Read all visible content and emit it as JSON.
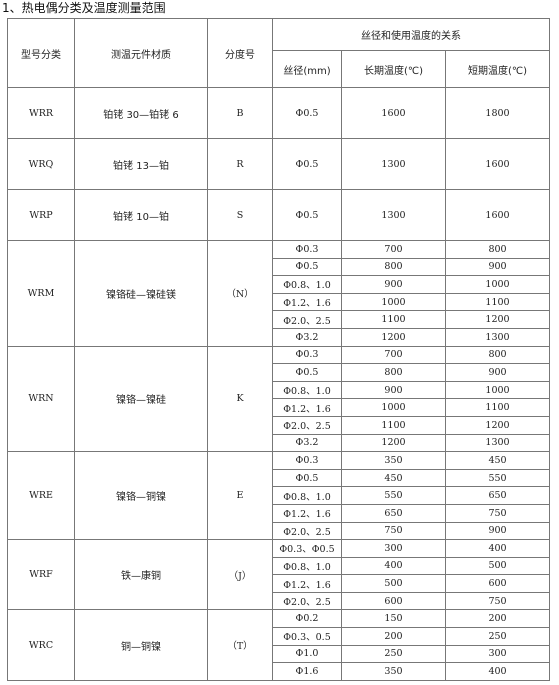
{
  "title": "1、热电偶分类及温度测量范围",
  "headers": {
    "model": "型号分类",
    "material": "测温元件材质",
    "grade": "分度号",
    "relation": "丝径和使用温度的关系",
    "diameter": "丝径(mm)",
    "long_term": "长期温度(℃)",
    "short_term": "短期温度(℃)"
  },
  "groups": [
    {
      "model": "WRR",
      "material": "铂铑 30—铂铑 6",
      "grade": "B",
      "rows": [
        [
          "Φ0.5",
          "1600",
          "1800"
        ]
      ]
    },
    {
      "model": "WRQ",
      "material": "铂铑 13—铂",
      "grade": "R",
      "rows": [
        [
          "Φ0.5",
          "1300",
          "1600"
        ]
      ]
    },
    {
      "model": "WRP",
      "material": "铂铑 10—铂",
      "grade": "S",
      "rows": [
        [
          "Φ0.5",
          "1300",
          "1600"
        ]
      ]
    },
    {
      "model": "WRM",
      "material": "镍铬硅—镍硅镁",
      "grade": "（N）",
      "rows": [
        [
          "Φ0.3",
          "700",
          "800"
        ],
        [
          "Φ0.5",
          "800",
          "900"
        ],
        [
          "Φ0.8、1.0",
          "900",
          "1000"
        ],
        [
          "Φ1.2、1.6",
          "1000",
          "1100"
        ],
        [
          "Φ2.0、2.5",
          "1100",
          "1200"
        ],
        [
          "Φ3.2",
          "1200",
          "1300"
        ]
      ]
    },
    {
      "model": "WRN",
      "material": "镍铬—镍硅",
      "grade": "K",
      "rows": [
        [
          "Φ0.3",
          "700",
          "800"
        ],
        [
          "Φ0.5",
          "800",
          "900"
        ],
        [
          "Φ0.8、1.0",
          "900",
          "1000"
        ],
        [
          "Φ1.2、1.6",
          "1000",
          "1100"
        ],
        [
          "Φ2.0、2.5",
          "1100",
          "1200"
        ],
        [
          "Φ3.2",
          "1200",
          "1300"
        ]
      ]
    },
    {
      "model": "WRE",
      "material": "镍铬—铜镍",
      "grade": "E",
      "rows": [
        [
          "Φ0.3",
          "350",
          "450"
        ],
        [
          "Φ0.5",
          "450",
          "550"
        ],
        [
          "Φ0.8、1.0",
          "550",
          "650"
        ],
        [
          "Φ1.2、1.6",
          "650",
          "750"
        ],
        [
          "Φ2.0、2.5",
          "750",
          "900"
        ]
      ]
    },
    {
      "model": "WRF",
      "material": "铁—康铜",
      "grade": "（J）",
      "rows": [
        [
          "Φ0.3、Φ0.5",
          "300",
          "400"
        ],
        [
          "Φ0.8、1.0",
          "400",
          "500"
        ],
        [
          "Φ1.2、1.6",
          "500",
          "600"
        ],
        [
          "Φ2.0、2.5",
          "600",
          "750"
        ]
      ]
    },
    {
      "model": "WRC",
      "material": "铜—铜镍",
      "grade": "（T）",
      "rows": [
        [
          "Φ0.2",
          "150",
          "200"
        ],
        [
          "Φ0.3、0.5",
          "200",
          "250"
        ],
        [
          "Φ1.0",
          "250",
          "300"
        ],
        [
          "Φ1.6",
          "350",
          "400"
        ]
      ]
    }
  ]
}
